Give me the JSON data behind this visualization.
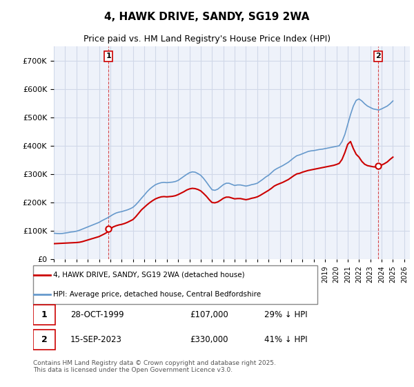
{
  "title": "4, HAWK DRIVE, SANDY, SG19 2WA",
  "subtitle": "Price paid vs. HM Land Registry's House Price Index (HPI)",
  "ylabel": "",
  "bg_color": "#ffffff",
  "grid_color": "#d0d8e8",
  "plot_bg": "#eef2fa",
  "ylim": [
    0,
    750000
  ],
  "yticks": [
    0,
    100000,
    200000,
    300000,
    400000,
    500000,
    600000,
    700000
  ],
  "xlim_start": 1995.0,
  "xlim_end": 2026.5,
  "xticks": [
    1995,
    1996,
    1997,
    1998,
    1999,
    2000,
    2001,
    2002,
    2003,
    2004,
    2005,
    2006,
    2007,
    2008,
    2009,
    2010,
    2011,
    2012,
    2013,
    2014,
    2015,
    2016,
    2017,
    2018,
    2019,
    2020,
    2021,
    2022,
    2023,
    2024,
    2025,
    2026
  ],
  "sale1_x": 1999.83,
  "sale1_y": 107000,
  "sale1_label": "1",
  "sale2_x": 2023.71,
  "sale2_y": 330000,
  "sale2_label": "2",
  "legend_entries": [
    "4, HAWK DRIVE, SANDY, SG19 2WA (detached house)",
    "HPI: Average price, detached house, Central Bedfordshire"
  ],
  "annotation1": "1    28-OCT-1999         £107,000         29% ↓ HPI",
  "annotation2": "2    15-SEP-2023         £330,000         41% ↓ HPI",
  "footer": "Contains HM Land Registry data © Crown copyright and database right 2025.\nThis data is licensed under the Open Government Licence v3.0.",
  "red_color": "#cc0000",
  "blue_color": "#6699cc",
  "hpi_data_x": [
    1995.0,
    1995.25,
    1995.5,
    1995.75,
    1996.0,
    1996.25,
    1996.5,
    1996.75,
    1997.0,
    1997.25,
    1997.5,
    1997.75,
    1998.0,
    1998.25,
    1998.5,
    1998.75,
    1999.0,
    1999.25,
    1999.5,
    1999.75,
    2000.0,
    2000.25,
    2000.5,
    2000.75,
    2001.0,
    2001.25,
    2001.5,
    2001.75,
    2002.0,
    2002.25,
    2002.5,
    2002.75,
    2003.0,
    2003.25,
    2003.5,
    2003.75,
    2004.0,
    2004.25,
    2004.5,
    2004.75,
    2005.0,
    2005.25,
    2005.5,
    2005.75,
    2006.0,
    2006.25,
    2006.5,
    2006.75,
    2007.0,
    2007.25,
    2007.5,
    2007.75,
    2008.0,
    2008.25,
    2008.5,
    2008.75,
    2009.0,
    2009.25,
    2009.5,
    2009.75,
    2010.0,
    2010.25,
    2010.5,
    2010.75,
    2011.0,
    2011.25,
    2011.5,
    2011.75,
    2012.0,
    2012.25,
    2012.5,
    2012.75,
    2013.0,
    2013.25,
    2013.5,
    2013.75,
    2014.0,
    2014.25,
    2014.5,
    2014.75,
    2015.0,
    2015.25,
    2015.5,
    2015.75,
    2016.0,
    2016.25,
    2016.5,
    2016.75,
    2017.0,
    2017.25,
    2017.5,
    2017.75,
    2018.0,
    2018.25,
    2018.5,
    2018.75,
    2019.0,
    2019.25,
    2019.5,
    2019.75,
    2020.0,
    2020.25,
    2020.5,
    2020.75,
    2021.0,
    2021.25,
    2021.5,
    2021.75,
    2022.0,
    2022.25,
    2022.5,
    2022.75,
    2023.0,
    2023.25,
    2023.5,
    2023.75,
    2024.0,
    2024.25,
    2024.5,
    2024.75,
    2025.0
  ],
  "hpi_data_y": [
    92000,
    91000,
    90500,
    91000,
    92500,
    94000,
    96000,
    97000,
    99000,
    102000,
    106000,
    110000,
    114000,
    118000,
    122000,
    126000,
    130000,
    136000,
    141000,
    146000,
    152000,
    158000,
    163000,
    166000,
    168000,
    171000,
    174000,
    178000,
    183000,
    192000,
    203000,
    215000,
    226000,
    238000,
    248000,
    256000,
    263000,
    267000,
    270000,
    271000,
    270000,
    271000,
    272000,
    274000,
    278000,
    285000,
    292000,
    299000,
    305000,
    308000,
    307000,
    302000,
    296000,
    285000,
    272000,
    258000,
    245000,
    243000,
    247000,
    255000,
    263000,
    268000,
    268000,
    264000,
    260000,
    262000,
    262000,
    260000,
    258000,
    260000,
    263000,
    265000,
    268000,
    275000,
    282000,
    290000,
    296000,
    305000,
    314000,
    320000,
    325000,
    330000,
    336000,
    342000,
    350000,
    358000,
    365000,
    368000,
    372000,
    376000,
    380000,
    382000,
    383000,
    385000,
    387000,
    388000,
    390000,
    392000,
    394000,
    396000,
    398000,
    400000,
    415000,
    440000,
    475000,
    510000,
    540000,
    560000,
    565000,
    558000,
    548000,
    540000,
    535000,
    530000,
    528000,
    526000,
    530000,
    535000,
    540000,
    548000,
    558000
  ],
  "price_data_x": [
    1995.0,
    1995.25,
    1995.5,
    1995.75,
    1996.0,
    1996.25,
    1996.5,
    1996.75,
    1997.0,
    1997.25,
    1997.5,
    1997.75,
    1998.0,
    1998.25,
    1998.5,
    1998.75,
    1999.0,
    1999.25,
    1999.5,
    1999.75,
    2000.0,
    2000.25,
    2000.5,
    2000.75,
    2001.0,
    2001.25,
    2001.5,
    2001.75,
    2002.0,
    2002.25,
    2002.5,
    2002.75,
    2003.0,
    2003.25,
    2003.5,
    2003.75,
    2004.0,
    2004.25,
    2004.5,
    2004.75,
    2005.0,
    2005.25,
    2005.5,
    2005.75,
    2006.0,
    2006.25,
    2006.5,
    2006.75,
    2007.0,
    2007.25,
    2007.5,
    2007.75,
    2008.0,
    2008.25,
    2008.5,
    2008.75,
    2009.0,
    2009.25,
    2009.5,
    2009.75,
    2010.0,
    2010.25,
    2010.5,
    2010.75,
    2011.0,
    2011.25,
    2011.5,
    2011.75,
    2012.0,
    2012.25,
    2012.5,
    2012.75,
    2013.0,
    2013.25,
    2013.5,
    2013.75,
    2014.0,
    2014.25,
    2014.5,
    2014.75,
    2015.0,
    2015.25,
    2015.5,
    2015.75,
    2016.0,
    2016.25,
    2016.5,
    2016.75,
    2017.0,
    2017.25,
    2017.5,
    2017.75,
    2018.0,
    2018.25,
    2018.5,
    2018.75,
    2019.0,
    2019.25,
    2019.5,
    2019.75,
    2020.0,
    2020.25,
    2020.5,
    2020.75,
    2021.0,
    2021.25,
    2021.5,
    2021.75,
    2022.0,
    2022.25,
    2022.5,
    2022.75,
    2023.0,
    2023.25,
    2023.5,
    2023.75,
    2024.0,
    2024.25,
    2024.5,
    2024.75,
    2025.0
  ],
  "price_data_y": [
    55000,
    55500,
    56000,
    56500,
    57000,
    57500,
    58000,
    58500,
    59000,
    60000,
    62000,
    65000,
    68000,
    71000,
    74000,
    77000,
    80000,
    85000,
    90000,
    96000,
    107000,
    114000,
    118000,
    121000,
    123000,
    126000,
    130000,
    135000,
    140000,
    150000,
    162000,
    174000,
    183000,
    192000,
    200000,
    207000,
    213000,
    217000,
    220000,
    221000,
    220000,
    221000,
    222000,
    224000,
    228000,
    233000,
    238000,
    244000,
    248000,
    250000,
    249000,
    246000,
    241000,
    232000,
    222000,
    210000,
    200000,
    199000,
    202000,
    208000,
    215000,
    219000,
    219000,
    216000,
    213000,
    214000,
    214000,
    212000,
    210000,
    212000,
    215000,
    217000,
    220000,
    225000,
    231000,
    237000,
    243000,
    250000,
    258000,
    263000,
    267000,
    271000,
    276000,
    281000,
    288000,
    295000,
    301000,
    303000,
    307000,
    310000,
    313000,
    315000,
    317000,
    319000,
    321000,
    323000,
    325000,
    327000,
    329000,
    331000,
    334000,
    338000,
    352000,
    376000,
    405000,
    415000,
    390000,
    370000,
    360000,
    345000,
    335000,
    330000,
    328000,
    326000,
    325000,
    327000,
    332000,
    337000,
    343000,
    352000,
    360000
  ]
}
